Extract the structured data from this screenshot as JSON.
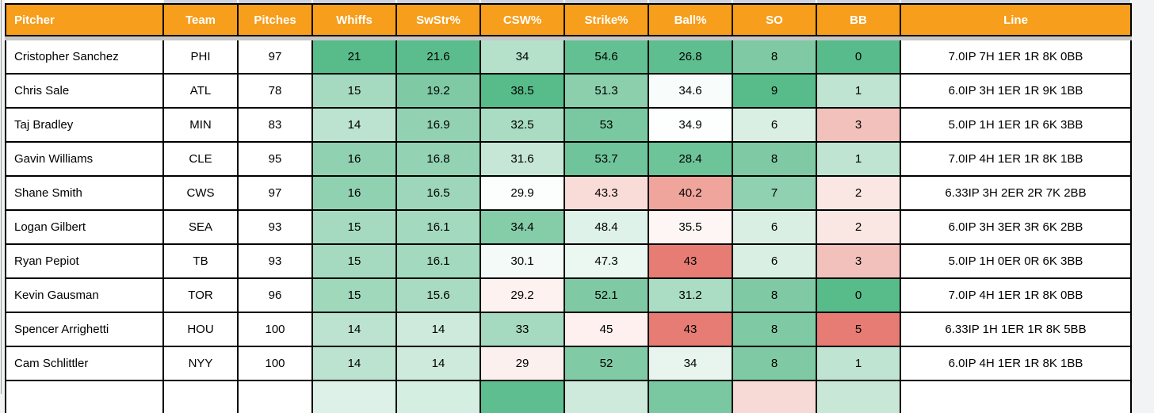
{
  "colors": {
    "header_bg": "#F79E1C",
    "header_text": "#FFFFFF",
    "cell_text": "#000000",
    "border_black": "#000000",
    "divider_gray": "#C7C7C7",
    "top_strip": "#CCD4E4",
    "page_bg": "#F1F3F4",
    "heatmap_green_max": "#57BB8A",
    "heatmap_red_max": "#E67C73",
    "heatmap_mid": "#FFFFFF"
  },
  "table": {
    "columns": [
      {
        "key": "pitcher",
        "label": "Pitcher",
        "align": "left"
      },
      {
        "key": "team",
        "label": "Team",
        "align": "center"
      },
      {
        "key": "pitches",
        "label": "Pitches",
        "align": "center"
      },
      {
        "key": "whiffs",
        "label": "Whiffs",
        "align": "center"
      },
      {
        "key": "swstr-pct",
        "label": "SwStr%",
        "align": "center"
      },
      {
        "key": "csw-pct",
        "label": "CSW%",
        "align": "center"
      },
      {
        "key": "strike-pct",
        "label": "Strike%",
        "align": "center"
      },
      {
        "key": "ball-pct",
        "label": "Ball%",
        "align": "center"
      },
      {
        "key": "so",
        "label": "SO",
        "align": "center"
      },
      {
        "key": "bb",
        "label": "BB",
        "align": "center"
      },
      {
        "key": "line",
        "label": "Line",
        "align": "center"
      }
    ],
    "rows": [
      {
        "cells": [
          {
            "v": "Cristopher Sanchez",
            "bg": "#FFFFFF"
          },
          {
            "v": "PHI",
            "bg": "#FFFFFF"
          },
          {
            "v": "97",
            "bg": "#FFFFFF"
          },
          {
            "v": "21",
            "bg": "#57BB8A"
          },
          {
            "v": "21.6",
            "bg": "#5BBD8D"
          },
          {
            "v": "34",
            "bg": "#B5E0CA"
          },
          {
            "v": "54.6",
            "bg": "#63C092"
          },
          {
            "v": "26.8",
            "bg": "#5FBE90"
          },
          {
            "v": "8",
            "bg": "#7FCAA5"
          },
          {
            "v": "0",
            "bg": "#58BB8B"
          },
          {
            "v": "7.0IP 7H 1ER 1R 8K 0BB",
            "bg": "#FFFFFF"
          }
        ]
      },
      {
        "cells": [
          {
            "v": "Chris Sale",
            "bg": "#FFFFFF"
          },
          {
            "v": "ATL",
            "bg": "#FFFFFF"
          },
          {
            "v": "78",
            "bg": "#FFFFFF"
          },
          {
            "v": "15",
            "bg": "#A6DAC0"
          },
          {
            "v": "19.2",
            "bg": "#7FCAA5"
          },
          {
            "v": "38.5",
            "bg": "#57BB8A"
          },
          {
            "v": "51.3",
            "bg": "#8BCFAD"
          },
          {
            "v": "34.6",
            "bg": "#F8FCFA"
          },
          {
            "v": "9",
            "bg": "#57BB8A"
          },
          {
            "v": "1",
            "bg": "#BFE4D1"
          },
          {
            "v": "6.0IP 3H 1ER 1R 9K 1BB",
            "bg": "#FFFFFF"
          }
        ]
      },
      {
        "cells": [
          {
            "v": "Taj Bradley",
            "bg": "#FFFFFF"
          },
          {
            "v": "MIN",
            "bg": "#FFFFFF"
          },
          {
            "v": "83",
            "bg": "#FFFFFF"
          },
          {
            "v": "14",
            "bg": "#BCE3D0"
          },
          {
            "v": "16.9",
            "bg": "#92D2B3"
          },
          {
            "v": "32.5",
            "bg": "#A9DCC2"
          },
          {
            "v": "53",
            "bg": "#79C8A1"
          },
          {
            "v": "34.9",
            "bg": "#FDFEFE"
          },
          {
            "v": "6",
            "bg": "#D9EFE4"
          },
          {
            "v": "3",
            "bg": "#F2C1BB"
          },
          {
            "v": "5.0IP 1H 1ER 1R 6K 3BB",
            "bg": "#FFFFFF"
          }
        ]
      },
      {
        "cells": [
          {
            "v": "Gavin Williams",
            "bg": "#FFFFFF"
          },
          {
            "v": "CLE",
            "bg": "#FFFFFF"
          },
          {
            "v": "95",
            "bg": "#FFFFFF"
          },
          {
            "v": "16",
            "bg": "#90D1B2"
          },
          {
            "v": "16.8",
            "bg": "#93D3B4"
          },
          {
            "v": "31.6",
            "bg": "#C6E7D6"
          },
          {
            "v": "53.7",
            "bg": "#6FC49B"
          },
          {
            "v": "28.4",
            "bg": "#6DC499"
          },
          {
            "v": "8",
            "bg": "#7FCAA5"
          },
          {
            "v": "1",
            "bg": "#BFE4D1"
          },
          {
            "v": "7.0IP 4H 1ER 1R 8K 1BB",
            "bg": "#FFFFFF"
          }
        ]
      },
      {
        "cells": [
          {
            "v": "Shane Smith",
            "bg": "#FFFFFF"
          },
          {
            "v": "CWS",
            "bg": "#FFFFFF"
          },
          {
            "v": "97",
            "bg": "#FFFFFF"
          },
          {
            "v": "16",
            "bg": "#90D1B2"
          },
          {
            "v": "16.5",
            "bg": "#9DD6BA"
          },
          {
            "v": "29.9",
            "bg": "#FCFDFD"
          },
          {
            "v": "43.3",
            "bg": "#F9DCD8"
          },
          {
            "v": "40.2",
            "bg": "#EFA49C"
          },
          {
            "v": "7",
            "bg": "#8FD1B1"
          },
          {
            "v": "2",
            "bg": "#FAE6E3"
          },
          {
            "v": "6.33IP 3H 2ER 2R 7K 2BB",
            "bg": "#FFFFFF"
          }
        ]
      },
      {
        "cells": [
          {
            "v": "Logan Gilbert",
            "bg": "#FFFFFF"
          },
          {
            "v": "SEA",
            "bg": "#FFFFFF"
          },
          {
            "v": "93",
            "bg": "#FFFFFF"
          },
          {
            "v": "15",
            "bg": "#A6DAC0"
          },
          {
            "v": "16.1",
            "bg": "#A3D9BE"
          },
          {
            "v": "34.4",
            "bg": "#85CDA9"
          },
          {
            "v": "48.4",
            "bg": "#DFF2E9"
          },
          {
            "v": "35.5",
            "bg": "#FDF6F5"
          },
          {
            "v": "6",
            "bg": "#D9EFE4"
          },
          {
            "v": "2",
            "bg": "#FAE6E3"
          },
          {
            "v": "6.0IP 3H 3ER 3R 6K 2BB",
            "bg": "#FFFFFF"
          }
        ]
      },
      {
        "cells": [
          {
            "v": "Ryan Pepiot",
            "bg": "#FFFFFF"
          },
          {
            "v": "TB",
            "bg": "#FFFFFF"
          },
          {
            "v": "93",
            "bg": "#FFFFFF"
          },
          {
            "v": "15",
            "bg": "#A6DAC0"
          },
          {
            "v": "16.1",
            "bg": "#A3D9BE"
          },
          {
            "v": "30.1",
            "bg": "#F4FAF7"
          },
          {
            "v": "47.3",
            "bg": "#EBF7F1"
          },
          {
            "v": "43",
            "bg": "#E67C73"
          },
          {
            "v": "6",
            "bg": "#D9EFE4"
          },
          {
            "v": "3",
            "bg": "#F2C1BB"
          },
          {
            "v": "5.0IP 1H 0ER 0R 6K 3BB",
            "bg": "#FFFFFF"
          }
        ]
      },
      {
        "cells": [
          {
            "v": "Kevin Gausman",
            "bg": "#FFFFFF"
          },
          {
            "v": "TOR",
            "bg": "#FFFFFF"
          },
          {
            "v": "96",
            "bg": "#FFFFFF"
          },
          {
            "v": "15",
            "bg": "#A0D8BC"
          },
          {
            "v": "15.6",
            "bg": "#A8DBC2"
          },
          {
            "v": "29.2",
            "bg": "#FDF2F0"
          },
          {
            "v": "52.1",
            "bg": "#7FCAA5"
          },
          {
            "v": "31.2",
            "bg": "#ABDCC4"
          },
          {
            "v": "8",
            "bg": "#7FCAA5"
          },
          {
            "v": "0",
            "bg": "#57BB8A"
          },
          {
            "v": "7.0IP 4H 1ER 1R 8K 0BB",
            "bg": "#FFFFFF"
          }
        ]
      },
      {
        "cells": [
          {
            "v": "Spencer Arrighetti",
            "bg": "#FFFFFF"
          },
          {
            "v": "HOU",
            "bg": "#FFFFFF"
          },
          {
            "v": "100",
            "bg": "#FFFFFF"
          },
          {
            "v": "14",
            "bg": "#BCE3D0"
          },
          {
            "v": "14",
            "bg": "#CDEADC"
          },
          {
            "v": "33",
            "bg": "#A5DAC0"
          },
          {
            "v": "45",
            "bg": "#FDF0EE"
          },
          {
            "v": "43",
            "bg": "#E67C73"
          },
          {
            "v": "8",
            "bg": "#7FCAA5"
          },
          {
            "v": "5",
            "bg": "#E67C73"
          },
          {
            "v": "6.33IP 1H 1ER 1R 8K 5BB",
            "bg": "#FFFFFF"
          }
        ]
      },
      {
        "cells": [
          {
            "v": "Cam Schlittler",
            "bg": "#FFFFFF"
          },
          {
            "v": "NYY",
            "bg": "#FFFFFF"
          },
          {
            "v": "100",
            "bg": "#FFFFFF"
          },
          {
            "v": "14",
            "bg": "#BCE3D0"
          },
          {
            "v": "14",
            "bg": "#CDEADC"
          },
          {
            "v": "29",
            "bg": "#FBF0ED"
          },
          {
            "v": "52",
            "bg": "#80CBA6"
          },
          {
            "v": "34",
            "bg": "#E7F5EE"
          },
          {
            "v": "8",
            "bg": "#7FCAA5"
          },
          {
            "v": "1",
            "bg": "#BFE4D1"
          },
          {
            "v": "6.0IP 4H 1ER 1R 8K 1BB",
            "bg": "#FFFFFF"
          }
        ]
      }
    ],
    "partial_row_bgs": [
      "#FFFFFF",
      "#FFFFFF",
      "#FFFFFF",
      "#DDF1E8",
      "#D5EEE2",
      "#5FBE90",
      "#CDEADC",
      "#79C8A1",
      "#F7D9D5",
      "#C9E7D7",
      "#FFFFFF"
    ]
  }
}
